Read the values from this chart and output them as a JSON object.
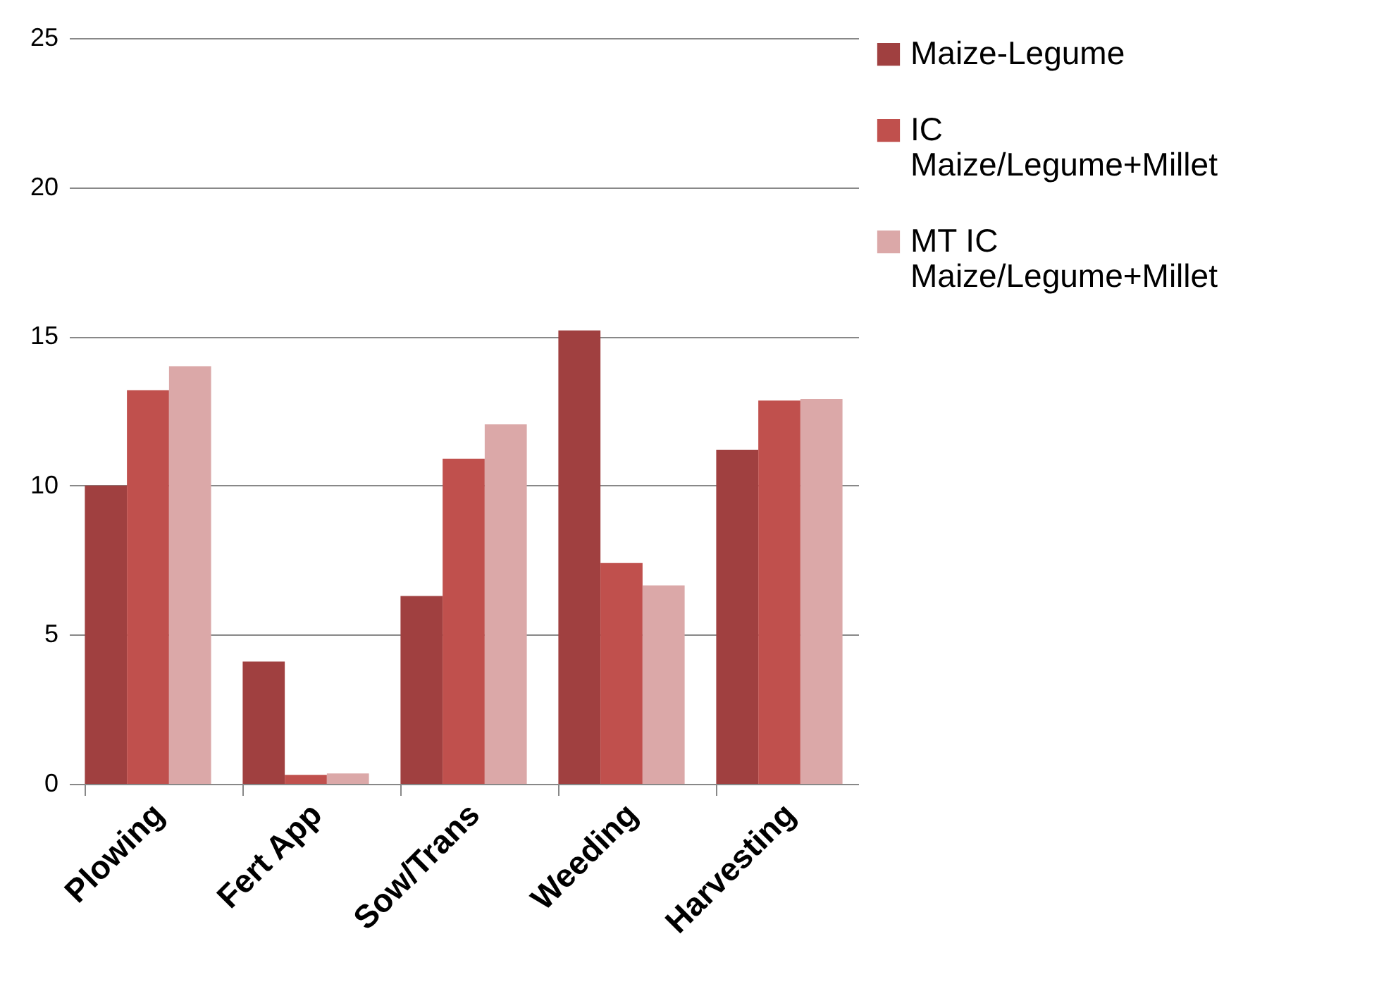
{
  "chart_data": {
    "type": "bar",
    "categories": [
      "Plowing",
      "Fert App",
      "Sow/Trans",
      "Weeding",
      "Harvesting"
    ],
    "series": [
      {
        "name": "Maize-Legume",
        "color": "#a04040",
        "values": [
          10,
          4.1,
          6.3,
          15.2,
          11.2
        ]
      },
      {
        "name": "IC Maize/Legume+Millet",
        "color": "#c0504d",
        "values": [
          13.2,
          0.3,
          10.9,
          7.4,
          12.85
        ]
      },
      {
        "name": "MT IC Maize/Legume+Millet",
        "color": "#dba8a8",
        "values": [
          14,
          0.35,
          12.05,
          6.65,
          12.9
        ]
      }
    ],
    "ylim": [
      0,
      25
    ],
    "yticks": [
      0,
      5,
      10,
      15,
      20,
      25
    ],
    "grid": "y",
    "legend": "right"
  }
}
